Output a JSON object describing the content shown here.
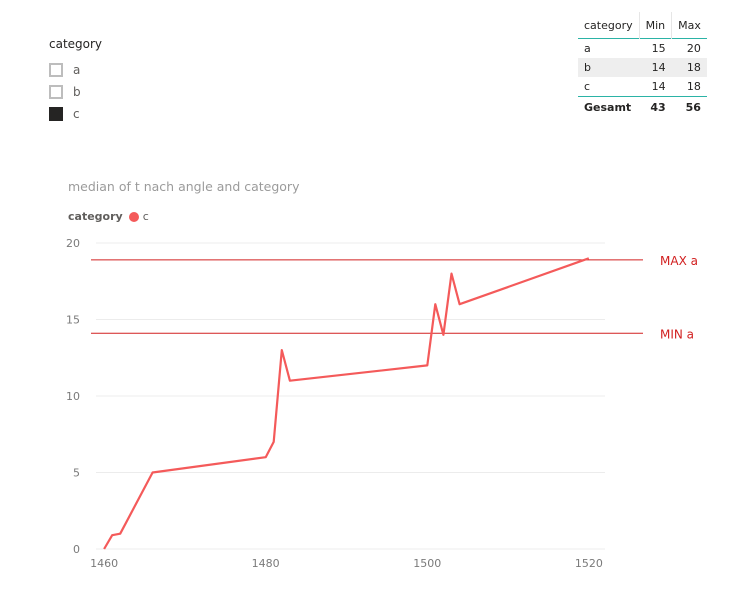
{
  "slicer": {
    "title": "category",
    "items": [
      {
        "label": "a",
        "checked": false
      },
      {
        "label": "b",
        "checked": false
      },
      {
        "label": "c",
        "checked": true
      }
    ]
  },
  "table": {
    "headers": [
      "category",
      "Min",
      "Max"
    ],
    "rows": [
      {
        "category": "a",
        "min": "15",
        "max": "20"
      },
      {
        "category": "b",
        "min": "14",
        "max": "18"
      },
      {
        "category": "c",
        "min": "14",
        "max": "18"
      }
    ],
    "total": {
      "label": "Gesamt",
      "min": "43",
      "max": "56"
    },
    "accent_color": "#2bb3a6"
  },
  "chart_data": {
    "type": "line",
    "title": "median of t nach angle and category",
    "legend_title": "category",
    "xlabel": "",
    "ylabel": "",
    "xlim": [
      1459,
      1522
    ],
    "ylim": [
      0,
      20
    ],
    "x_ticks": [
      1460,
      1480,
      1500,
      1520
    ],
    "y_ticks": [
      0,
      5,
      10,
      15,
      20
    ],
    "grid": true,
    "series": [
      {
        "name": "c",
        "color": "#f45a5a",
        "points": [
          [
            1460,
            0
          ],
          [
            1461,
            0.9
          ],
          [
            1462,
            1
          ],
          [
            1466,
            5
          ],
          [
            1480,
            6
          ],
          [
            1481,
            7
          ],
          [
            1482,
            13
          ],
          [
            1483,
            11
          ],
          [
            1500,
            12
          ],
          [
            1501,
            16
          ],
          [
            1502,
            14
          ],
          [
            1503,
            18
          ],
          [
            1504,
            16
          ],
          [
            1520,
            19
          ]
        ]
      }
    ],
    "reference_lines": [
      {
        "label": "MAX a",
        "y": 18.9,
        "color": "#d22020"
      },
      {
        "label": "MIN a",
        "y": 14.1,
        "color": "#d22020"
      }
    ]
  }
}
